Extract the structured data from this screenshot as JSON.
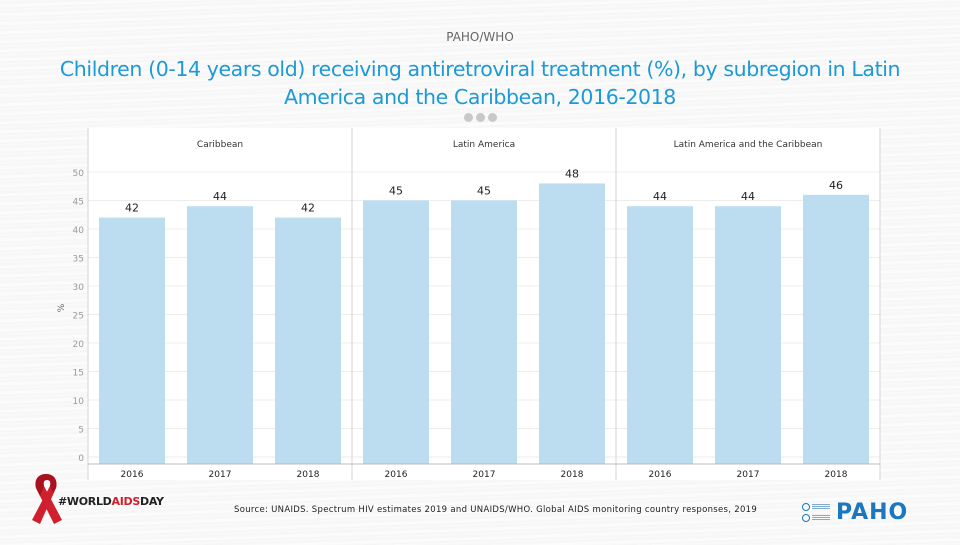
{
  "header": {
    "org_label": "PAHO/WHO",
    "title": "Children (0-14 years old)  receiving antiretroviral treatment (%), by subregion in Latin America and the Caribbean, 2016-2018"
  },
  "chart_data": {
    "type": "bar",
    "title": "Children (0-14 years old) receiving antiretroviral treatment (%), by subregion in Latin America and the Caribbean, 2016-2018",
    "xlabel": "",
    "ylabel": "%",
    "ylim": [
      0,
      50
    ],
    "yticks": [
      0,
      5,
      10,
      15,
      20,
      25,
      30,
      35,
      40,
      45,
      50
    ],
    "grid": true,
    "bar_color": "#bcdcef",
    "panels": [
      {
        "name": "Caribbean",
        "categories": [
          "2016",
          "2017",
          "2018"
        ],
        "values": [
          42,
          44,
          42
        ]
      },
      {
        "name": "Latin America",
        "categories": [
          "2016",
          "2017",
          "2018"
        ],
        "values": [
          45,
          45,
          48
        ]
      },
      {
        "name": "Latin America and the Caribbean",
        "categories": [
          "2016",
          "2017",
          "2018"
        ],
        "values": [
          44,
          44,
          46
        ]
      }
    ]
  },
  "footer": {
    "source": "Source: UNAIDS. Spectrum HIV estimates 2019 and UNAIDS/WHO. Global AIDS monitoring country responses, 2019",
    "hashtag_prefix": "#WORLD",
    "hashtag_highlight": "AIDS",
    "hashtag_suffix": "DAY",
    "logo_text": "PAHO"
  },
  "icons": {
    "ribbon": "red-ribbon-icon",
    "more": "more-dots-icon",
    "emblem": "un-emblem-icon"
  }
}
